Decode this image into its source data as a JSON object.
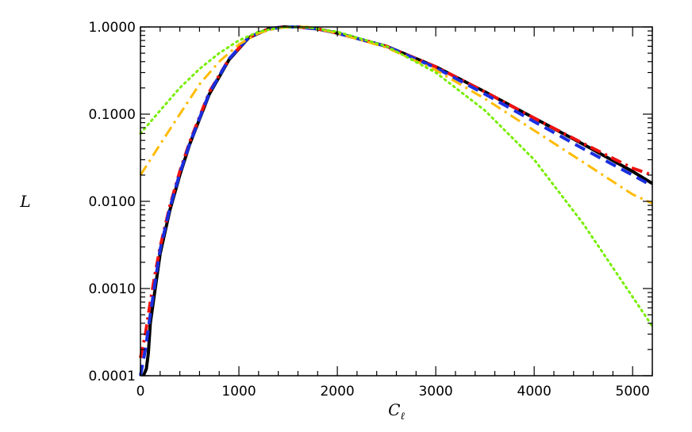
{
  "chart_data": {
    "type": "line",
    "title": "",
    "xlabel": "C",
    "xlabel_sub": "ℓ",
    "ylabel": "L",
    "xlim": [
      0,
      5200
    ],
    "ylim": [
      0.0001,
      1.0
    ],
    "yscale": "log",
    "xticks": [
      0,
      1000,
      2000,
      3000,
      4000,
      5000
    ],
    "xtick_labels": [
      "0",
      "1000",
      "2000",
      "3000",
      "4000",
      "5000"
    ],
    "yticks": [
      0.0001,
      0.001,
      0.01,
      0.1,
      1.0
    ],
    "ytick_labels": [
      "0.0001",
      "0.0010",
      "0.0100",
      "0.1000",
      "1.0000"
    ],
    "grid": false,
    "legend": "none",
    "series": [
      {
        "color": "#000000",
        "dash": "solid",
        "width": 4,
        "x": [
          30,
          60,
          80,
          100,
          150,
          200,
          300,
          400,
          500,
          700,
          900,
          1100,
          1300,
          1450,
          1550,
          1600,
          1800,
          2000,
          2500,
          3000,
          3500,
          4000,
          4500,
          5000,
          5200
        ],
        "y": [
          0.0001,
          0.00012,
          0.00018,
          0.0004,
          0.001,
          0.0025,
          0.008,
          0.02,
          0.045,
          0.17,
          0.42,
          0.75,
          0.95,
          1.0,
          1.0,
          1.0,
          0.95,
          0.85,
          0.6,
          0.35,
          0.18,
          0.09,
          0.045,
          0.022,
          0.016
        ]
      },
      {
        "color": "#ee1111",
        "dash": "dashdot",
        "width": 4,
        "x": [
          0,
          50,
          100,
          150,
          200,
          300,
          400,
          500,
          700,
          900,
          1100,
          1300,
          1450,
          1550,
          1600,
          1800,
          2000,
          2500,
          3000,
          3500,
          4000,
          4500,
          5000,
          5200
        ],
        "y": [
          0.00016,
          0.0003,
          0.0007,
          0.0015,
          0.003,
          0.009,
          0.022,
          0.048,
          0.18,
          0.43,
          0.76,
          0.95,
          1.0,
          1.0,
          1.0,
          0.95,
          0.85,
          0.6,
          0.35,
          0.18,
          0.09,
          0.046,
          0.024,
          0.02
        ]
      },
      {
        "color": "#1a2ee0",
        "dash": "dashed",
        "width": 4,
        "x": [
          0,
          50,
          100,
          150,
          200,
          300,
          400,
          500,
          700,
          900,
          1100,
          1300,
          1450,
          1550,
          1600,
          1800,
          2000,
          2500,
          3000,
          3500,
          4000,
          4500,
          5000,
          5200
        ],
        "y": [
          0.0001,
          0.0002,
          0.0005,
          0.0012,
          0.0028,
          0.0085,
          0.021,
          0.046,
          0.175,
          0.43,
          0.76,
          0.95,
          1.0,
          1.0,
          1.0,
          0.95,
          0.85,
          0.6,
          0.34,
          0.17,
          0.082,
          0.04,
          0.02,
          0.015
        ]
      },
      {
        "color": "#ffbb00",
        "dash": "dashdot",
        "width": 3,
        "x": [
          0,
          200,
          400,
          600,
          800,
          1000,
          1200,
          1400,
          1550,
          1700,
          2000,
          2500,
          3000,
          3500,
          4000,
          4500,
          5000,
          5200
        ],
        "y": [
          0.02,
          0.045,
          0.1,
          0.22,
          0.4,
          0.63,
          0.85,
          0.98,
          1.0,
          1.0,
          0.85,
          0.58,
          0.32,
          0.15,
          0.065,
          0.028,
          0.012,
          0.0095
        ]
      },
      {
        "color": "#77ee00",
        "dash": "dotted",
        "width": 3,
        "x": [
          0,
          200,
          400,
          600,
          800,
          1000,
          1200,
          1400,
          1550,
          1700,
          2000,
          2500,
          3000,
          3500,
          4000,
          4500,
          5000,
          5200
        ],
        "y": [
          0.06,
          0.11,
          0.2,
          0.33,
          0.5,
          0.7,
          0.88,
          0.98,
          1.0,
          0.99,
          0.88,
          0.6,
          0.3,
          0.11,
          0.03,
          0.0055,
          0.0008,
          0.00037
        ]
      }
    ]
  }
}
